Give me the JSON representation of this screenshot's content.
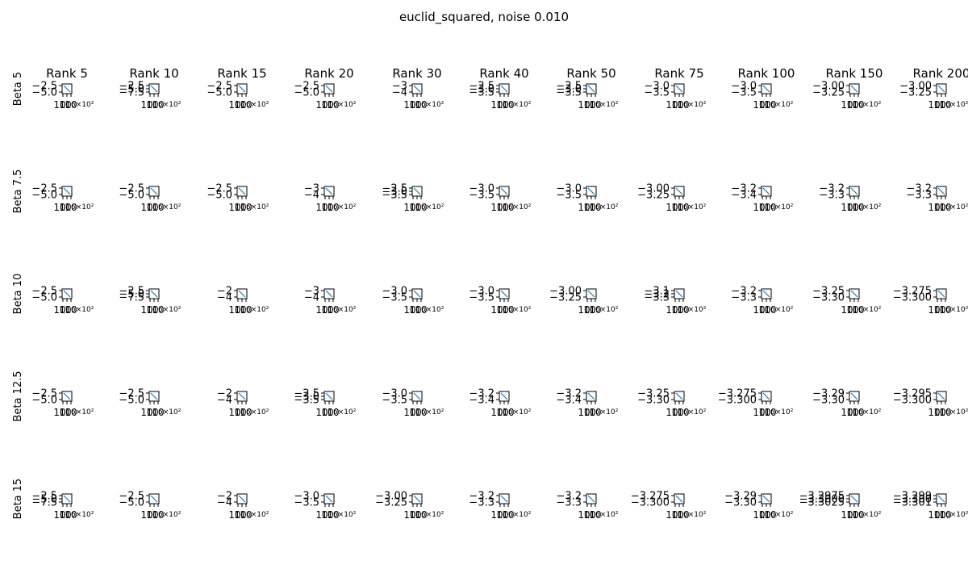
{
  "chart_data": {
    "type": "line",
    "title": "euclid_squared, noise 0.010",
    "layout": "grid",
    "col_titles": [
      "Rank 5",
      "Rank 10",
      "Rank 15",
      "Rank 20",
      "Rank 30",
      "Rank 40",
      "Rank 50",
      "Rank 75",
      "Rank 100",
      "Rank 150",
      "Rank 200"
    ],
    "row_labels": [
      "Beta 5",
      "Beta 7.5",
      "Beta 10",
      "Beta 12.5",
      "Beta 15"
    ],
    "x_tick_labels": [
      "10",
      "10",
      "10"
    ],
    "x_offset_label": "6×10²",
    "series_color": "#1f77b4",
    "y_tick_labels": [
      [
        [
          "−2.5",
          "−5.0"
        ],
        [
          "−2.5",
          "−5.0",
          "−7.5"
        ],
        [
          "−2.5",
          "−5.0"
        ],
        [
          "−2.5",
          "−5.0"
        ],
        [
          "−3",
          "−4"
        ],
        [
          "−2.5",
          "−3.0",
          "−3.5"
        ],
        [
          "−2.5",
          "−3.0",
          "−3.5"
        ],
        [
          "−3.0",
          "−3.5"
        ],
        [
          "−3.0",
          "−3.5"
        ],
        [
          "−3.00",
          "−3.25"
        ],
        [
          "−3.00",
          "−3.25"
        ]
      ],
      [
        [
          "−2.5",
          "−5.0"
        ],
        [
          "−2.5",
          "−5.0"
        ],
        [
          "−2.5",
          "−5.0"
        ],
        [
          "−3",
          "−4"
        ],
        [
          "−2.5",
          "−3.0",
          "−3.5"
        ],
        [
          "−3.0",
          "−3.5"
        ],
        [
          "−3.0",
          "−3.5"
        ],
        [
          "−3.00",
          "−3.25"
        ],
        [
          "−3.2",
          "−3.4"
        ],
        [
          "−3.2",
          "−3.3"
        ],
        [
          "−3.2",
          "−3.3"
        ]
      ],
      [
        [
          "−2.5",
          "−5.0"
        ],
        [
          "−2.5",
          "−5.0",
          "−7.5"
        ],
        [
          "−2",
          "−4"
        ],
        [
          "−3",
          "−4"
        ],
        [
          "−3.0",
          "−3.5"
        ],
        [
          "−3.0",
          "−3.5"
        ],
        [
          "−3.00",
          "−3.25"
        ],
        [
          "−3.1",
          "−3.2",
          "−3.3"
        ],
        [
          "−3.2",
          "−3.3"
        ],
        [
          "−3.25",
          "−3.30"
        ],
        [
          "−3.275",
          "−3.300"
        ]
      ],
      [
        [
          "−2.5",
          "−5.0"
        ],
        [
          "−2.5",
          "−5.0"
        ],
        [
          "−2",
          "−4"
        ],
        [
          "−2.5",
          "−3.0",
          "−3.5"
        ],
        [
          "−3.0",
          "−3.5"
        ],
        [
          "−3.2",
          "−3.4"
        ],
        [
          "−3.2",
          "−3.4"
        ],
        [
          "−3.25",
          "−3.30"
        ],
        [
          "−3.275",
          "−3.300"
        ],
        [
          "−3.29",
          "−3.30"
        ],
        [
          "−3.295",
          "−3.300"
        ]
      ],
      [
        [
          "−2.5",
          "−5.0",
          "−7.5"
        ],
        [
          "−2.5",
          "−5.0"
        ],
        [
          "−2",
          "−4"
        ],
        [
          "−3.0",
          "−3.5"
        ],
        [
          "−3.00",
          "−3.25"
        ],
        [
          "−3.2",
          "−3.3"
        ],
        [
          "−3.2",
          "−3.3"
        ],
        [
          "−3.275",
          "−3.300"
        ],
        [
          "−3.29",
          "−3.30"
        ],
        [
          "−3.2975",
          "−3.3000",
          "−3.3025"
        ],
        [
          "−3.299",
          "−3.300",
          "−3.301"
        ]
      ]
    ]
  }
}
